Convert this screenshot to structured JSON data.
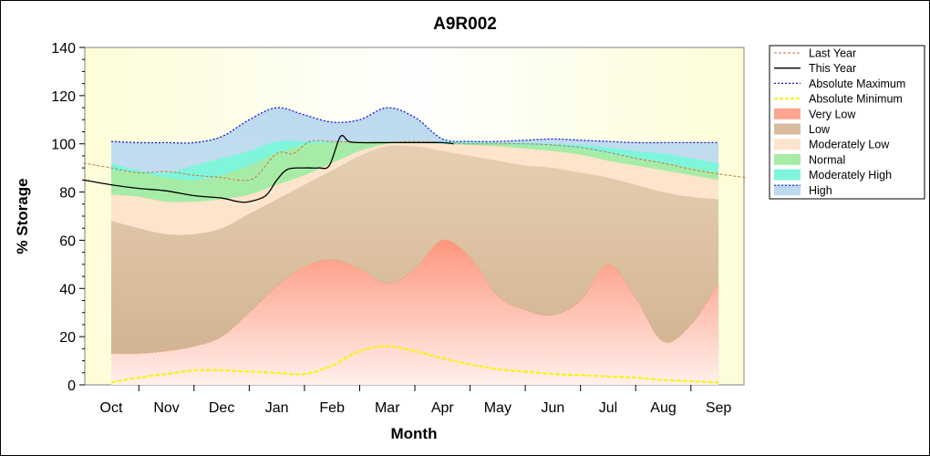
{
  "chart_data": {
    "type": "area",
    "title": "A9R002",
    "xlabel": "Month",
    "ylabel": "% Storage",
    "ylim": [
      0,
      140
    ],
    "yticks": [
      0,
      20,
      40,
      60,
      80,
      100,
      120,
      140
    ],
    "categories": [
      "Oct",
      "Nov",
      "Dec",
      "Jan",
      "Feb",
      "Mar",
      "Apr",
      "May",
      "Jun",
      "Jul",
      "Aug",
      "Sep"
    ],
    "grid": false,
    "legend_position": "right",
    "colors": {
      "plot_background": "#fdfde0",
      "high": "#bcd9ee",
      "moderately_high": "#7ff5dc",
      "normal": "#a6eca6",
      "moderately_low": "#fde4cc",
      "low": "#d8bc9c",
      "very_low": "#fda68f",
      "absolute_maximum": "#1a1ad6",
      "absolute_minimum": "#f5f500",
      "last_year": "#c8763f",
      "this_year": "#000000"
    },
    "bands_x": [
      0,
      0.5,
      1,
      1.5,
      2,
      2.5,
      3,
      3.5,
      4,
      4.5,
      5,
      5.5,
      6,
      6.5,
      7,
      7.5,
      8,
      8.5,
      9,
      9.5,
      10,
      10.5,
      11
    ],
    "bands": {
      "absolute_maximum": [
        101,
        100.5,
        100.5,
        100.5,
        103,
        110,
        115,
        112,
        109,
        110,
        115,
        111,
        102,
        101,
        101,
        101.5,
        102,
        101.5,
        101,
        100.5,
        100.5,
        100.5,
        100.5
      ],
      "moderately_high": [
        92,
        89,
        88,
        91,
        94,
        97,
        101,
        101,
        101,
        101,
        101,
        101,
        101,
        101,
        100.5,
        100.5,
        100,
        99.5,
        98.5,
        97,
        96,
        94,
        92
      ],
      "normal": [
        89,
        88,
        86,
        85,
        87,
        91,
        96,
        99.5,
        100.5,
        101,
        101,
        101,
        100,
        100,
        100,
        99.5,
        99,
        98,
        96,
        94,
        92,
        90,
        88
      ],
      "moderately_low": [
        79,
        78,
        76,
        76,
        77,
        79,
        83,
        87,
        92,
        97,
        100,
        100.5,
        100,
        99.5,
        99,
        98,
        97,
        95.5,
        93,
        91,
        89,
        87,
        85
      ],
      "low": [
        68,
        65,
        62.5,
        62.5,
        65,
        71,
        77,
        83,
        89,
        95,
        99,
        99,
        97,
        95,
        93,
        91,
        90,
        88,
        86,
        83,
        80,
        78,
        77
      ],
      "very_low": [
        13,
        13,
        14,
        16,
        20,
        30,
        41,
        49,
        52,
        48,
        42,
        48,
        60,
        53,
        37,
        31,
        29,
        35,
        50,
        36,
        18,
        25,
        42
      ],
      "absolute_minimum": [
        1,
        3,
        4.5,
        6,
        6,
        5.5,
        5,
        4.5,
        8,
        14,
        16,
        14,
        11,
        8.5,
        6.5,
        5.5,
        4.5,
        4,
        3.5,
        3,
        2,
        1.5,
        1
      ]
    },
    "series": [
      {
        "name": "Last Year",
        "x": [
          -0.5,
          0,
          0.5,
          1,
          1.5,
          2,
          2.3,
          2.6,
          3,
          3.3,
          3.6,
          4,
          4.5,
          5,
          5.5,
          6,
          6.5,
          7,
          7.5,
          8,
          8.5,
          9,
          9.5,
          10,
          10.5,
          11,
          11.5
        ],
        "values": [
          92,
          90,
          88,
          88.5,
          87,
          86,
          85,
          86,
          96,
          96,
          101,
          101,
          100.5,
          100.5,
          101,
          100.5,
          100,
          100,
          100,
          99.5,
          98.5,
          96.5,
          94,
          92,
          89.5,
          87.5,
          86
        ]
      },
      {
        "name": "This Year",
        "x": [
          -0.5,
          0,
          0.5,
          1,
          1.5,
          2,
          2.3,
          2.5,
          2.8,
          3,
          3.2,
          3.5,
          3.75,
          3.95,
          4.15,
          4.3,
          4.5,
          5,
          5.5,
          6,
          6.2
        ],
        "values": [
          85,
          83,
          81.5,
          80.5,
          78.5,
          77.5,
          76,
          76,
          78.5,
          85,
          89.5,
          90,
          90,
          91,
          103,
          101,
          100.5,
          100.5,
          100.5,
          100.5,
          100
        ]
      }
    ],
    "legend": [
      "Last Year",
      "This Year",
      "Absolute Maximum",
      "Absolute Minimum",
      "Very Low",
      "Low",
      "Moderately Low",
      "Normal",
      "Moderately High",
      "High"
    ]
  }
}
